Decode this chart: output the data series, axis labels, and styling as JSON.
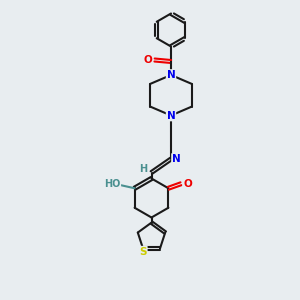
{
  "bg_color": "#e8edf0",
  "bond_color": "#1a1a1a",
  "nitrogen_color": "#0000ee",
  "oxygen_color": "#ee0000",
  "sulfur_color": "#cccc00",
  "teal_color": "#4a9090",
  "line_width": 1.5,
  "fig_width": 3.0,
  "fig_height": 3.0,
  "dpi": 100,
  "xlim": [
    0,
    6
  ],
  "ylim": [
    0,
    10
  ]
}
